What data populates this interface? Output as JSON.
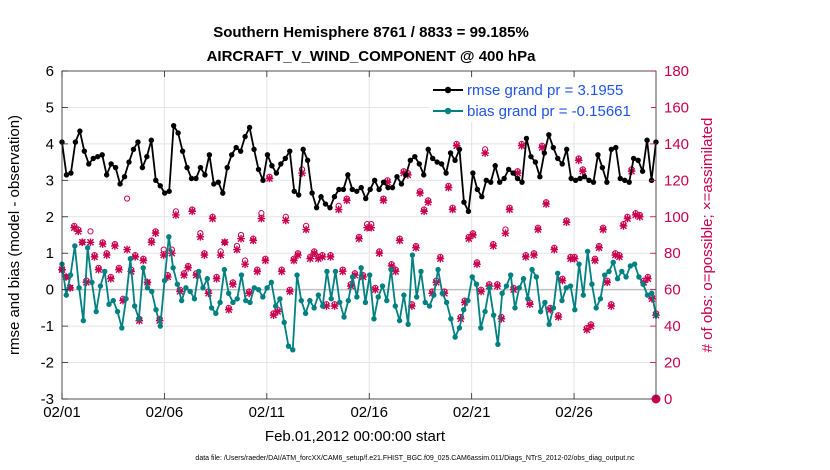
{
  "chart_data": {
    "type": "line",
    "title_line1": "Southern Hemisphere 8761 / 8833 = 99.185%",
    "title_line2": "AIRCRAFT_V_WIND_COMPONENT @ 400 hPa",
    "xlabel": "Feb.01,2012 00:00:00 start",
    "ylabel_left": "rmse and bias (model - observation)",
    "ylabel_right": "# of obs: o=possible; ×=assimilated",
    "ylim_left": [
      -3,
      6
    ],
    "ylim_right": [
      0,
      180
    ],
    "xlim_days": [
      0,
      29
    ],
    "yticks_left": [
      "-3",
      "-2",
      "-1",
      "0",
      "1",
      "2",
      "3",
      "4",
      "5",
      "6"
    ],
    "yticks_right": [
      "0",
      "20",
      "40",
      "60",
      "80",
      "100",
      "120",
      "140",
      "160",
      "180"
    ],
    "xticks": [
      {
        "day": 0,
        "label": "02/01"
      },
      {
        "day": 5,
        "label": "02/06"
      },
      {
        "day": 10,
        "label": "02/11"
      },
      {
        "day": 15,
        "label": "02/16"
      },
      {
        "day": 20,
        "label": "02/21"
      },
      {
        "day": 25,
        "label": "02/26"
      }
    ],
    "series": [
      {
        "name": "rmse",
        "legend": "rmse grand pr = 3.1955",
        "color": "#000000",
        "values": [
          4.05,
          3.15,
          3.2,
          4.05,
          4.35,
          3.8,
          3.45,
          3.6,
          3.65,
          3.7,
          3.15,
          3.45,
          3.35,
          2.9,
          3.1,
          3.5,
          3.85,
          4.05,
          3.35,
          3.65,
          4.1,
          3.0,
          2.85,
          2.65,
          2.7,
          4.5,
          4.3,
          3.8,
          3.35,
          3.05,
          3.05,
          3.35,
          3.15,
          3.7,
          2.9,
          2.95,
          2.65,
          3.35,
          3.7,
          3.9,
          3.8,
          4.2,
          4.45,
          3.85,
          3.3,
          3.0,
          3.7,
          3.4,
          3.2,
          3.45,
          3.6,
          3.8,
          2.7,
          2.6,
          3.85,
          3.55,
          2.65,
          2.25,
          2.55,
          2.35,
          2.25,
          2.55,
          2.75,
          2.75,
          3.15,
          2.75,
          2.7,
          2.8,
          2.5,
          2.75,
          3.0,
          2.75,
          2.95,
          2.8,
          2.8,
          3.1,
          2.9,
          3.15,
          3.55,
          3.65,
          3.45,
          3.15,
          3.85,
          3.6,
          3.5,
          3.45,
          3.2,
          3.75,
          3.55,
          3.85,
          2.4,
          2.15,
          3.2,
          2.75,
          2.55,
          3.0,
          2.95,
          3.4,
          2.95,
          3.05,
          3.3,
          3.2,
          3.05,
          2.95,
          4.15,
          3.65,
          3.5,
          3.1,
          3.75,
          4.25,
          3.9,
          3.6,
          3.45,
          3.85,
          3.05,
          3.0,
          3.05,
          3.1,
          3.0,
          2.95,
          3.7,
          3.35,
          2.95,
          3.85,
          3.9,
          3.05,
          3.0,
          2.95,
          3.6,
          3.55,
          3.25,
          4.1,
          3.0,
          4.05
        ]
      },
      {
        "name": "bias",
        "legend": "bias grand pr = -0.15661",
        "color": "#008080",
        "values": [
          0.7,
          -0.15,
          0.4,
          1.2,
          0.05,
          -0.85,
          1.15,
          0.2,
          -0.6,
          0.1,
          0.5,
          -0.4,
          -0.3,
          -0.6,
          -1.05,
          -0.25,
          0.85,
          -0.45,
          -0.8,
          0.6,
          0.05,
          -0.05,
          -0.55,
          -1.0,
          0.25,
          1.45,
          0.6,
          0.15,
          -0.3,
          0.05,
          -0.05,
          -0.25,
          0.5,
          0.05,
          0.3,
          -0.5,
          -0.65,
          -0.35,
          0.55,
          -0.1,
          -0.35,
          -0.25,
          0.4,
          -0.3,
          -0.35,
          0.05,
          0.0,
          -0.2,
          0.05,
          0.2,
          -0.45,
          -0.25,
          -0.9,
          -1.55,
          -1.65,
          0.4,
          -0.3,
          -0.65,
          -0.3,
          -0.5,
          -0.15,
          -0.45,
          0.5,
          -0.25,
          0.5,
          -0.35,
          -0.75,
          -0.3,
          0.35,
          -0.2,
          0.6,
          -0.35,
          0.4,
          -0.8,
          -0.2,
          0.1,
          -0.3,
          0.55,
          -0.45,
          -0.85,
          -0.15,
          -0.95,
          0.95,
          -0.2,
          0.5,
          -0.35,
          -0.45,
          -0.15,
          0.55,
          -0.1,
          -0.35,
          -0.8,
          -1.3,
          -1.05,
          -0.55,
          -0.3,
          0.35,
          0.15,
          -1.05,
          -0.6,
          0.05,
          -0.7,
          -1.5,
          -0.1,
          0.1,
          0.4,
          -0.5,
          0.05,
          0.3,
          -0.25,
          0.55,
          0.35,
          -0.6,
          -0.35,
          -0.95,
          -0.5,
          0.45,
          -0.3,
          0.05,
          0.1,
          -0.55,
          0.7,
          -0.15,
          1.05,
          0.15,
          -0.5,
          -0.25,
          0.4,
          0.5,
          0.75,
          0.3,
          0.5,
          0.35,
          0.65,
          0.7,
          0.35,
          0.15,
          -0.15,
          -0.1,
          -0.7
        ]
      }
    ],
    "obs_assimilated": [
      71,
      67,
      61,
      94,
      92,
      86,
      64,
      86,
      78,
      71,
      85,
      79,
      66,
      84,
      71,
      54,
      82,
      70,
      78,
      43,
      76,
      64,
      86,
      91,
      43,
      79,
      67,
      80,
      101,
      59,
      68,
      72,
      103,
      68,
      89,
      79,
      58,
      99,
      66,
      79,
      86,
      49,
      63,
      82,
      88,
      74,
      58,
      87,
      70,
      99,
      76,
      121,
      46,
      48,
      70,
      98,
      59,
      76,
      79,
      124,
      93,
      77,
      80,
      77,
      78,
      51,
      78,
      51,
      104,
      70,
      109,
      62,
      68,
      88,
      67,
      94,
      94,
      60,
      80,
      109,
      119,
      73,
      70,
      87,
      124,
      123,
      51,
      83,
      113,
      103,
      108,
      58,
      64,
      77,
      58,
      116,
      104,
      139,
      44,
      53,
      88,
      90,
      74,
      59,
      135,
      62,
      84,
      62,
      44,
      91,
      104,
      60,
      124,
      139,
      78,
      52,
      79,
      93,
      138,
      107,
      49,
      82,
      45,
      65,
      97,
      77,
      77,
      131,
      125,
      38,
      40,
      76,
      83,
      93,
      64,
      51,
      79,
      78,
      95,
      99,
      125,
      101,
      100,
      64,
      66,
      55,
      46
    ],
    "obs_possible": [
      71,
      67,
      61,
      95,
      93,
      86,
      65,
      92,
      79,
      72,
      86,
      80,
      67,
      85,
      72,
      55,
      110,
      71,
      79,
      44,
      77,
      64,
      87,
      92,
      44,
      82,
      68,
      82,
      103,
      60,
      69,
      73,
      104,
      69,
      91,
      80,
      59,
      100,
      67,
      81,
      86,
      50,
      64,
      84,
      90,
      76,
      59,
      88,
      71,
      102,
      77,
      122,
      47,
      49,
      71,
      100,
      60,
      77,
      80,
      126,
      95,
      78,
      81,
      78,
      79,
      52,
      79,
      52,
      106,
      71,
      110,
      63,
      69,
      89,
      68,
      96,
      96,
      61,
      81,
      110,
      120,
      74,
      71,
      88,
      125,
      124,
      52,
      84,
      114,
      104,
      109,
      59,
      65,
      78,
      59,
      117,
      105,
      140,
      45,
      54,
      89,
      91,
      75,
      60,
      137,
      63,
      85,
      63,
      45,
      93,
      105,
      61,
      125,
      140,
      79,
      53,
      80,
      94,
      139,
      108,
      50,
      83,
      46,
      66,
      98,
      78,
      78,
      132,
      126,
      39,
      41,
      77,
      84,
      94,
      65,
      52,
      80,
      79,
      96,
      100,
      126,
      102,
      101,
      65,
      67,
      56,
      47
    ],
    "final_point": {
      "day": 29,
      "obs": 0
    },
    "footnote": "data file: /Users/raeder/DAI/ATM_forcXX/CAM6_setup/f.e21.FHIST_BGC.f09_025.CAM6assim.011/Diags_NTrS_2012-02/obs_diag_output.nc"
  }
}
